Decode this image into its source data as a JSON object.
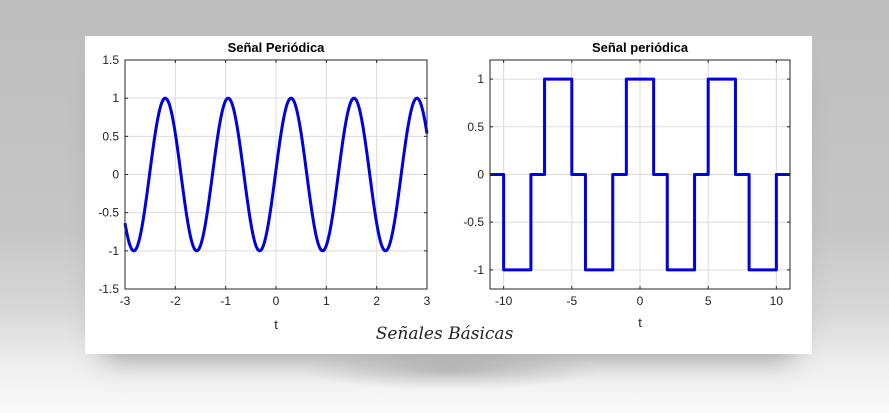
{
  "caption": "Señales Básicas",
  "chart_data": [
    {
      "type": "line",
      "title": "Señal Periódica",
      "xlabel": "t",
      "ylabel": "",
      "xlim": [
        -3,
        3
      ],
      "ylim": [
        -1.5,
        1.5
      ],
      "xticks": [
        -3,
        -2,
        -1,
        0,
        1,
        2,
        3
      ],
      "yticks": [
        -1.5,
        -1,
        -0.5,
        0,
        0.5,
        1,
        1.5
      ],
      "grid": true,
      "series": [
        {
          "function": "cos(2*pi*f*(t - t0))",
          "frequency": 0.8,
          "t0": 0.3,
          "amplitude": 1,
          "color": "#0000e0"
        }
      ]
    },
    {
      "type": "line",
      "title": "Señal periódica",
      "xlabel": "t",
      "ylabel": "",
      "xlim": [
        -11,
        11
      ],
      "ylim": [
        -1.2,
        1.2
      ],
      "xticks": [
        -10,
        -5,
        0,
        5,
        10
      ],
      "yticks": [
        -1,
        -0.5,
        0,
        0.5,
        1
      ],
      "grid": true,
      "series": [
        {
          "color": "#0000e0",
          "x": [
            -11,
            -10,
            -10,
            -8,
            -8,
            -7,
            -7,
            -5,
            -5,
            -4,
            -4,
            -2,
            -2,
            -1,
            -1,
            1,
            1,
            2,
            2,
            4,
            4,
            5,
            5,
            7,
            7,
            8,
            8,
            10,
            10,
            11
          ],
          "y": [
            0,
            0,
            -1,
            -1,
            0,
            0,
            1,
            1,
            0,
            0,
            -1,
            -1,
            0,
            0,
            1,
            1,
            0,
            0,
            -1,
            -1,
            0,
            0,
            1,
            1,
            0,
            0,
            -1,
            -1,
            0,
            0
          ]
        }
      ]
    }
  ]
}
